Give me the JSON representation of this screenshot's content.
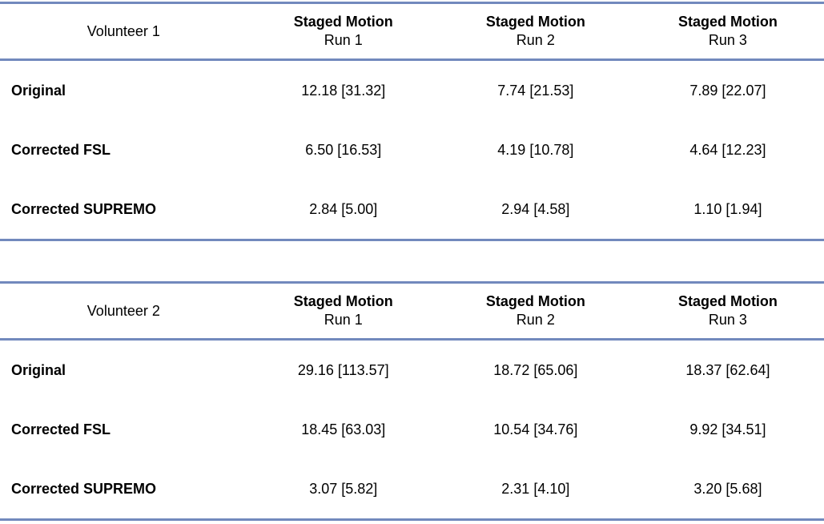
{
  "page": {
    "background": "#ffffff",
    "rule_color": "#7289BD",
    "text_color": "#000000"
  },
  "tables": [
    {
      "label": "Volunteer 1",
      "columns": [
        {
          "line1": "Staged Motion",
          "line2": "Run 1"
        },
        {
          "line1": "Staged Motion",
          "line2": "Run 2"
        },
        {
          "line1": "Staged Motion",
          "line2": "Run 3"
        }
      ],
      "rows": [
        {
          "label": "Original",
          "values": [
            "12.18 [31.32]",
            "7.74 [21.53]",
            "7.89 [22.07]"
          ]
        },
        {
          "label": "Corrected FSL",
          "values": [
            "6.50 [16.53]",
            "4.19 [10.78]",
            "4.64 [12.23]"
          ]
        },
        {
          "label": "Corrected SUPREMO",
          "values": [
            "2.84 [5.00]",
            "2.94 [4.58]",
            "1.10 [1.94]"
          ]
        }
      ]
    },
    {
      "label": "Volunteer 2",
      "columns": [
        {
          "line1": "Staged Motion",
          "line2": "Run 1"
        },
        {
          "line1": "Staged Motion",
          "line2": "Run 2"
        },
        {
          "line1": "Staged Motion",
          "line2": "Run 3"
        }
      ],
      "rows": [
        {
          "label": "Original",
          "values": [
            "29.16 [113.57]",
            "18.72 [65.06]",
            "18.37 [62.64]"
          ]
        },
        {
          "label": "Corrected FSL",
          "values": [
            "18.45 [63.03]",
            "10.54 [34.76]",
            "9.92 [34.51]"
          ]
        },
        {
          "label": "Corrected SUPREMO",
          "values": [
            "3.07 [5.82]",
            "2.31 [4.10]",
            "3.20 [5.68]"
          ]
        }
      ]
    }
  ]
}
